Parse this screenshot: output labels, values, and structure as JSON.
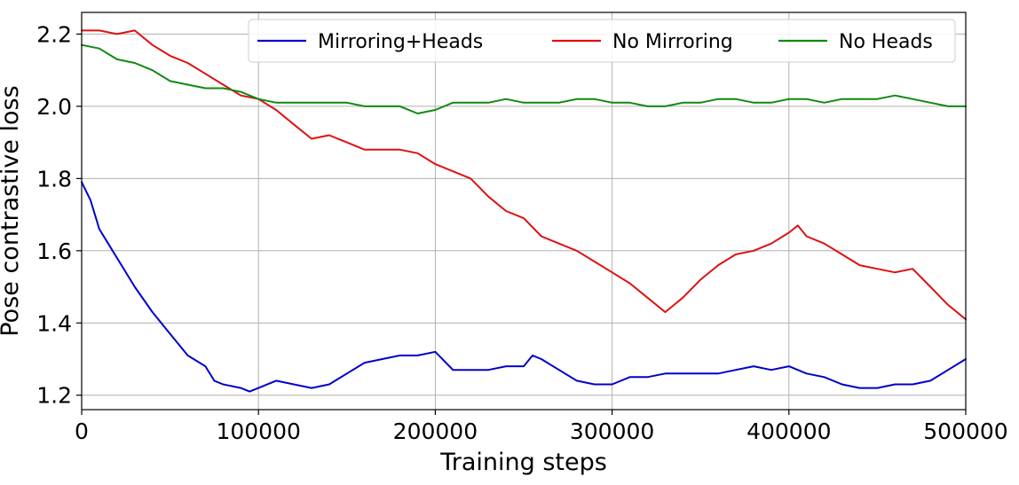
{
  "chart_data": {
    "type": "line",
    "title": "",
    "xlabel": "Training steps",
    "ylabel": "Pose contrastive loss",
    "xlim": [
      0,
      500000
    ],
    "ylim": [
      1.16,
      2.26
    ],
    "xticks": [
      0,
      100000,
      200000,
      300000,
      400000,
      500000
    ],
    "xtick_labels": [
      "0",
      "100000",
      "200000",
      "300000",
      "400000",
      "500000"
    ],
    "yticks": [
      1.2,
      1.4,
      1.6,
      1.8,
      2.0,
      2.2
    ],
    "ytick_labels": [
      "1.2",
      "1.4",
      "1.6",
      "1.8",
      "2.0",
      "2.2"
    ],
    "grid": true,
    "legend_position": "top-right",
    "series": [
      {
        "name": "Mirroring+Heads",
        "color": "#0000cc",
        "x": [
          0,
          5000,
          10000,
          15000,
          20000,
          30000,
          40000,
          50000,
          60000,
          70000,
          75000,
          80000,
          90000,
          95000,
          100000,
          110000,
          120000,
          130000,
          140000,
          150000,
          160000,
          170000,
          180000,
          190000,
          200000,
          210000,
          220000,
          230000,
          240000,
          250000,
          255000,
          260000,
          270000,
          280000,
          290000,
          300000,
          310000,
          320000,
          330000,
          340000,
          350000,
          360000,
          370000,
          380000,
          390000,
          400000,
          410000,
          420000,
          430000,
          440000,
          450000,
          460000,
          470000,
          480000,
          490000,
          500000
        ],
        "y": [
          1.79,
          1.74,
          1.66,
          1.62,
          1.58,
          1.5,
          1.43,
          1.37,
          1.31,
          1.28,
          1.24,
          1.23,
          1.22,
          1.21,
          1.22,
          1.24,
          1.23,
          1.22,
          1.23,
          1.26,
          1.29,
          1.3,
          1.31,
          1.31,
          1.32,
          1.27,
          1.27,
          1.27,
          1.28,
          1.28,
          1.31,
          1.3,
          1.27,
          1.24,
          1.23,
          1.23,
          1.25,
          1.25,
          1.26,
          1.26,
          1.26,
          1.26,
          1.27,
          1.28,
          1.27,
          1.28,
          1.26,
          1.25,
          1.23,
          1.22,
          1.22,
          1.23,
          1.23,
          1.24,
          1.27,
          1.3
        ]
      },
      {
        "name": "No Mirroring",
        "color": "#dd1111",
        "x": [
          0,
          10000,
          20000,
          30000,
          40000,
          50000,
          60000,
          70000,
          80000,
          90000,
          100000,
          110000,
          120000,
          130000,
          140000,
          150000,
          160000,
          170000,
          180000,
          190000,
          200000,
          210000,
          220000,
          230000,
          240000,
          250000,
          260000,
          270000,
          280000,
          290000,
          300000,
          310000,
          320000,
          330000,
          340000,
          350000,
          360000,
          370000,
          380000,
          390000,
          400000,
          405000,
          410000,
          420000,
          430000,
          440000,
          450000,
          460000,
          470000,
          480000,
          490000,
          500000
        ],
        "y": [
          2.21,
          2.21,
          2.2,
          2.21,
          2.17,
          2.14,
          2.12,
          2.09,
          2.06,
          2.03,
          2.02,
          1.99,
          1.95,
          1.91,
          1.92,
          1.9,
          1.88,
          1.88,
          1.88,
          1.87,
          1.84,
          1.82,
          1.8,
          1.75,
          1.71,
          1.69,
          1.64,
          1.62,
          1.6,
          1.57,
          1.54,
          1.51,
          1.47,
          1.43,
          1.47,
          1.52,
          1.56,
          1.59,
          1.6,
          1.62,
          1.65,
          1.67,
          1.64,
          1.62,
          1.59,
          1.56,
          1.55,
          1.54,
          1.55,
          1.5,
          1.45,
          1.41
        ]
      },
      {
        "name": "No Heads",
        "color": "#118811",
        "x": [
          0,
          10000,
          20000,
          30000,
          40000,
          50000,
          60000,
          70000,
          80000,
          90000,
          100000,
          110000,
          120000,
          130000,
          140000,
          150000,
          160000,
          170000,
          180000,
          190000,
          200000,
          210000,
          220000,
          230000,
          240000,
          250000,
          260000,
          270000,
          280000,
          290000,
          300000,
          310000,
          320000,
          330000,
          340000,
          350000,
          360000,
          370000,
          380000,
          390000,
          400000,
          410000,
          420000,
          430000,
          440000,
          450000,
          460000,
          470000,
          480000,
          490000,
          500000
        ],
        "y": [
          2.17,
          2.16,
          2.13,
          2.12,
          2.1,
          2.07,
          2.06,
          2.05,
          2.05,
          2.04,
          2.02,
          2.01,
          2.01,
          2.01,
          2.01,
          2.01,
          2.0,
          2.0,
          2.0,
          1.98,
          1.99,
          2.01,
          2.01,
          2.01,
          2.02,
          2.01,
          2.01,
          2.01,
          2.02,
          2.02,
          2.01,
          2.01,
          2.0,
          2.0,
          2.01,
          2.01,
          2.02,
          2.02,
          2.01,
          2.01,
          2.02,
          2.02,
          2.01,
          2.02,
          2.02,
          2.02,
          2.03,
          2.02,
          2.01,
          2.0,
          2.0
        ]
      }
    ]
  }
}
